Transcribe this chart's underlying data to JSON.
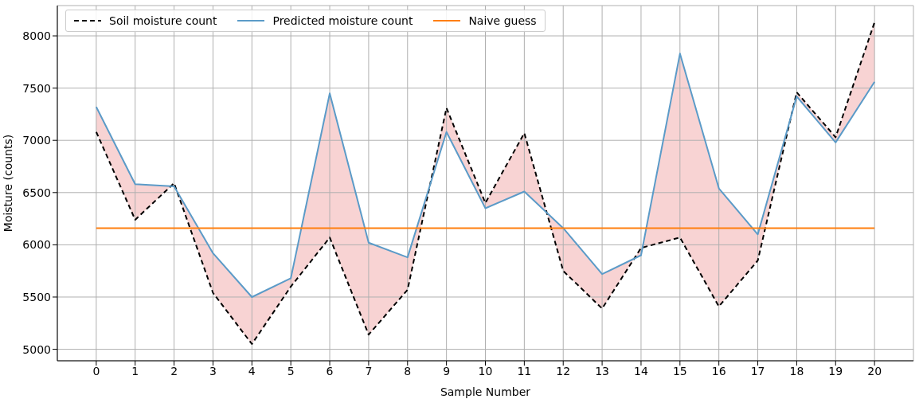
{
  "chart_data": {
    "type": "line",
    "xlabel": "Sample Number",
    "ylabel": "Moisture (counts)",
    "x": [
      0,
      1,
      2,
      3,
      4,
      5,
      6,
      7,
      8,
      9,
      10,
      11,
      12,
      13,
      14,
      15,
      16,
      17,
      18,
      19,
      20
    ],
    "xlim": [
      -1,
      21
    ],
    "xticks": [
      0,
      1,
      2,
      3,
      4,
      5,
      6,
      7,
      8,
      9,
      10,
      11,
      12,
      13,
      14,
      15,
      16,
      17,
      18,
      19,
      20
    ],
    "ylim": [
      4890,
      8290
    ],
    "yticks": [
      5000,
      5500,
      6000,
      6500,
      7000,
      7500,
      8000
    ],
    "grid": true,
    "legend": "top left",
    "series": [
      {
        "name": "Soil moisture count",
        "color": "#000000",
        "line_style": "dashed",
        "values": [
          7080,
          6240,
          6590,
          5540,
          5050,
          5600,
          6070,
          5140,
          5570,
          7310,
          6400,
          7070,
          5750,
          5390,
          5970,
          6070,
          5410,
          5850,
          7460,
          7030,
          8130
        ]
      },
      {
        "name": "Predicted moisture count",
        "color": "#5b9bc8",
        "line_style": "solid",
        "values": [
          7320,
          6580,
          6560,
          5920,
          5500,
          5680,
          7450,
          6020,
          5880,
          7080,
          6350,
          6510,
          6160,
          5720,
          5900,
          7830,
          6540,
          6100,
          7420,
          6980,
          7560
        ],
        "lower": [
          7080,
          6240,
          6590,
          5540,
          5050,
          5600,
          6070,
          5140,
          5570,
          7310,
          6400,
          7070,
          5750,
          5390,
          5970,
          6070,
          5410,
          5850,
          7460,
          7030,
          8130
        ],
        "upper": [
          7320,
          6580,
          6560,
          5920,
          5500,
          5680,
          7450,
          6020,
          5880,
          7080,
          6350,
          6510,
          6160,
          5720,
          5900,
          7830,
          6540,
          6100,
          7420,
          6980,
          7560
        ]
      },
      {
        "name": "Naive guess",
        "color": "#ff7f0e",
        "line_style": "solid",
        "values": [
          6160,
          6160,
          6160,
          6160,
          6160,
          6160,
          6160,
          6160,
          6160,
          6160,
          6160,
          6160,
          6160,
          6160,
          6160,
          6160,
          6160,
          6160,
          6160,
          6160,
          6160
        ]
      }
    ]
  }
}
